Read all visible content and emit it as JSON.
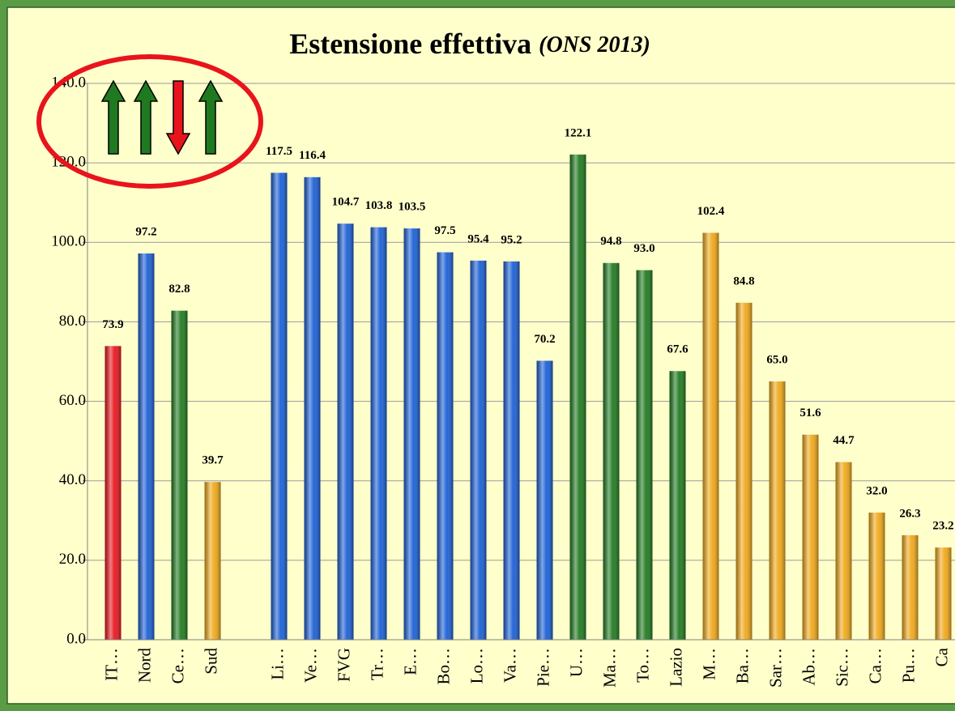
{
  "chart_data": {
    "type": "bar",
    "title": "Estensione effettiva",
    "subtitle": "(ONS 2013)",
    "categories": [
      "IT…",
      "Nord",
      "Ce…",
      "Sud",
      null,
      "Li…",
      "Ve…",
      "FVG",
      "Tr…",
      "E…",
      "Bo…",
      "Lo…",
      "Va…",
      "Pie…",
      "U…",
      "Ma…",
      "To…",
      "Lazio",
      "M…",
      "Ba…",
      "Sar…",
      "Ab…",
      "Sic…",
      "Ca…",
      "Pu…",
      "Ca"
    ],
    "values": [
      73.9,
      97.2,
      82.8,
      39.7,
      null,
      117.5,
      116.4,
      104.7,
      103.8,
      103.5,
      97.5,
      95.4,
      95.2,
      70.2,
      122.1,
      94.8,
      93.0,
      67.6,
      102.4,
      84.8,
      65.0,
      51.6,
      44.7,
      32.0,
      26.3,
      23.2
    ],
    "value_labels": [
      "73.9",
      "97.2",
      "82.8",
      "39.7",
      null,
      "117.5",
      "116.4",
      "104.7",
      "103.8",
      "103.5",
      "97.5",
      "95.4",
      "95.2",
      "70.2",
      "122.1",
      "94.8",
      "93.0",
      "67.6",
      "102.4",
      "84.8",
      "65.0",
      "51.6",
      "44.7",
      "32.0",
      "26.3",
      "23.2"
    ],
    "colors": [
      "#e8141c",
      "#1a5fd6",
      "#1f7a1f",
      "#f0a818",
      null,
      "#1a5fd6",
      "#1a5fd6",
      "#1a5fd6",
      "#1a5fd6",
      "#1a5fd6",
      "#1a5fd6",
      "#1a5fd6",
      "#1a5fd6",
      "#1a5fd6",
      "#1f7a1f",
      "#1f7a1f",
      "#1f7a1f",
      "#1f7a1f",
      "#f0a818",
      "#f0a818",
      "#f0a818",
      "#f0a818",
      "#f0a818",
      "#f0a818",
      "#f0a818",
      "#f0a818"
    ],
    "ylim": [
      0,
      140
    ],
    "yticks": [
      {
        "value": 0,
        "label": "0.0"
      },
      {
        "value": 20,
        "label": "20.0"
      },
      {
        "value": 40,
        "label": "40.0"
      },
      {
        "value": 60,
        "label": "60.0"
      },
      {
        "value": 80,
        "label": "80.0"
      },
      {
        "value": 100,
        "label": "100.0"
      },
      {
        "value": 120,
        "label": "120.0"
      },
      {
        "value": 140,
        "label": "140.0"
      }
    ],
    "grid": true
  }
}
